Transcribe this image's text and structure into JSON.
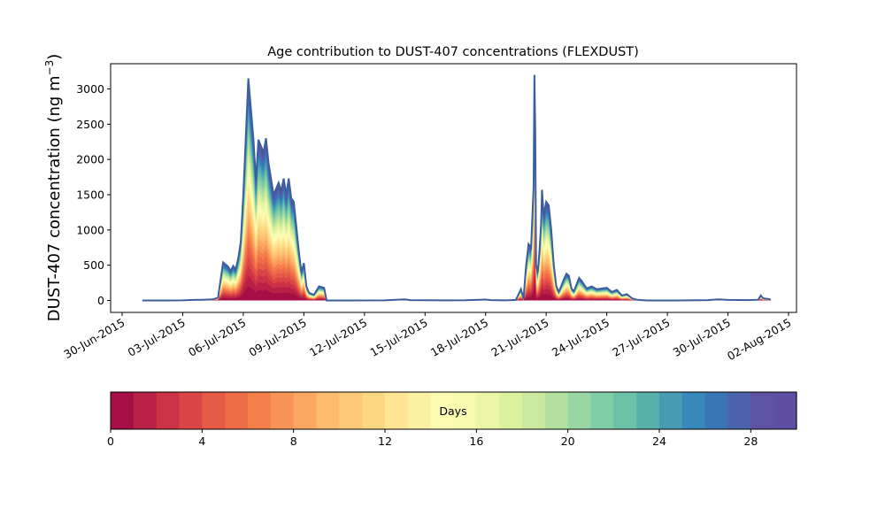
{
  "chart_data": {
    "type": "area",
    "title": "Age contribution to DUST-407 concentrations (FLEXDUST)",
    "ylabel": "DUST-407 concentration (ng m",
    "ylabel_sup": "−3",
    "ylabel_end": ")",
    "xlabel": "",
    "ylim": [
      -160,
      3320
    ],
    "xlim": [
      "2015-06-30T00:00",
      "2015-08-02T00:00"
    ],
    "y_ticks": [
      0,
      500,
      1000,
      1500,
      2000,
      2500,
      3000
    ],
    "x_ticks": [
      "2015-06-30",
      "2015-07-03",
      "2015-07-06",
      "2015-07-09",
      "2015-07-12",
      "2015-07-15",
      "2015-07-18",
      "2015-07-21",
      "2015-07-24",
      "2015-07-27",
      "2015-07-30",
      "2015-08-02"
    ],
    "x_tick_labels": [
      "30-Jun-2015",
      "03-Jul-2015",
      "06-Jul-2015",
      "09-Jul-2015",
      "12-Jul-2015",
      "15-Jul-2015",
      "18-Jul-2015",
      "21-Jul-2015",
      "24-Jul-2015",
      "27-Jul-2015",
      "30-Jul-2015",
      "02-Aug-2015"
    ],
    "grid": false,
    "series": [
      {
        "total": [
          [
            "2015-07-01T00:00",
            0
          ],
          [
            "2015-07-02T00:00",
            0
          ],
          [
            "2015-07-03T00:00",
            2
          ],
          [
            "2015-07-03T12:00",
            8
          ],
          [
            "2015-07-04T00:00",
            10
          ],
          [
            "2015-07-04T12:00",
            15
          ],
          [
            "2015-07-04T18:00",
            40
          ],
          [
            "2015-07-05T00:00",
            540
          ],
          [
            "2015-07-05T06:00",
            480
          ],
          [
            "2015-07-05T09:00",
            420
          ],
          [
            "2015-07-05T12:00",
            490
          ],
          [
            "2015-07-05T15:00",
            440
          ],
          [
            "2015-07-05T18:00",
            600
          ],
          [
            "2015-07-05T21:00",
            830
          ],
          [
            "2015-07-06T00:00",
            1500
          ],
          [
            "2015-07-06T06:00",
            3150
          ],
          [
            "2015-07-06T12:00",
            2300
          ],
          [
            "2015-07-06T15:00",
            1700
          ],
          [
            "2015-07-06T18:00",
            2280
          ],
          [
            "2015-07-07T00:00",
            2100
          ],
          [
            "2015-07-07T03:00",
            2300
          ],
          [
            "2015-07-07T06:00",
            1950
          ],
          [
            "2015-07-07T12:00",
            1500
          ],
          [
            "2015-07-07T18:00",
            1670
          ],
          [
            "2015-07-07T21:00",
            1550
          ],
          [
            "2015-07-08T00:00",
            1730
          ],
          [
            "2015-07-08T03:00",
            1500
          ],
          [
            "2015-07-08T06:00",
            1730
          ],
          [
            "2015-07-08T09:00",
            1450
          ],
          [
            "2015-07-08T12:00",
            1400
          ],
          [
            "2015-07-08T18:00",
            700
          ],
          [
            "2015-07-08T21:00",
            400
          ],
          [
            "2015-07-09T00:00",
            530
          ],
          [
            "2015-07-09T03:00",
            200
          ],
          [
            "2015-07-09T06:00",
            110
          ],
          [
            "2015-07-09T12:00",
            80
          ],
          [
            "2015-07-09T18:00",
            200
          ],
          [
            "2015-07-10T00:00",
            180
          ],
          [
            "2015-07-10T03:00",
            0
          ],
          [
            "2015-07-11T00:00",
            0
          ],
          [
            "2015-07-13T00:00",
            2
          ],
          [
            "2015-07-14T00:00",
            15
          ],
          [
            "2015-07-14T06:00",
            5
          ],
          [
            "2015-07-15T00:00",
            3
          ],
          [
            "2015-07-16T00:00",
            2
          ],
          [
            "2015-07-17T00:00",
            3
          ],
          [
            "2015-07-18T00:00",
            12
          ],
          [
            "2015-07-18T06:00",
            4
          ],
          [
            "2015-07-19T00:00",
            2
          ],
          [
            "2015-07-19T12:00",
            8
          ],
          [
            "2015-07-19T18:00",
            160
          ],
          [
            "2015-07-19T21:00",
            20
          ],
          [
            "2015-07-20T00:00",
            480
          ],
          [
            "2015-07-20T03:00",
            800
          ],
          [
            "2015-07-20T06:00",
            750
          ],
          [
            "2015-07-20T09:00",
            1600
          ],
          [
            "2015-07-20T10:00",
            3200
          ],
          [
            "2015-07-20T11:00",
            2400
          ],
          [
            "2015-07-20T12:00",
            500
          ],
          [
            "2015-07-20T14:00",
            400
          ],
          [
            "2015-07-20T16:00",
            700
          ],
          [
            "2015-07-20T18:00",
            1100
          ],
          [
            "2015-07-20T19:00",
            1570
          ],
          [
            "2015-07-20T21:00",
            1200
          ],
          [
            "2015-07-21T00:00",
            1400
          ],
          [
            "2015-07-21T03:00",
            1350
          ],
          [
            "2015-07-21T06:00",
            1000
          ],
          [
            "2015-07-21T09:00",
            500
          ],
          [
            "2015-07-21T12:00",
            200
          ],
          [
            "2015-07-21T15:00",
            120
          ],
          [
            "2015-07-21T21:00",
            300
          ],
          [
            "2015-07-22T00:00",
            380
          ],
          [
            "2015-07-22T03:00",
            350
          ],
          [
            "2015-07-22T06:00",
            170
          ],
          [
            "2015-07-22T09:00",
            130
          ],
          [
            "2015-07-22T15:00",
            320
          ],
          [
            "2015-07-22T18:00",
            280
          ],
          [
            "2015-07-23T00:00",
            170
          ],
          [
            "2015-07-23T06:00",
            200
          ],
          [
            "2015-07-23T12:00",
            160
          ],
          [
            "2015-07-23T18:00",
            170
          ],
          [
            "2015-07-24T00:00",
            180
          ],
          [
            "2015-07-24T06:00",
            120
          ],
          [
            "2015-07-24T12:00",
            150
          ],
          [
            "2015-07-24T18:00",
            70
          ],
          [
            "2015-07-25T00:00",
            90
          ],
          [
            "2015-07-25T06:00",
            30
          ],
          [
            "2015-07-25T12:00",
            10
          ],
          [
            "2015-07-26T00:00",
            0
          ],
          [
            "2015-07-27T00:00",
            0
          ],
          [
            "2015-07-28T00:00",
            2
          ],
          [
            "2015-07-29T00:00",
            5
          ],
          [
            "2015-07-29T12:00",
            15
          ],
          [
            "2015-07-30T00:00",
            8
          ],
          [
            "2015-07-31T00:00",
            5
          ],
          [
            "2015-07-31T12:00",
            10
          ],
          [
            "2015-07-31T15:00",
            70
          ],
          [
            "2015-07-31T18:00",
            30
          ],
          [
            "2015-08-01T00:00",
            20
          ],
          [
            "2015-08-01T03:00",
            10
          ]
        ]
      }
    ],
    "colorbar": {
      "label": "Days",
      "range": [
        0,
        30
      ],
      "n_colors": 30,
      "ticks": [
        "0",
        "4",
        "8",
        "12",
        "16",
        "20",
        "24",
        "28"
      ],
      "colors": [
        "#a50f45",
        "#b92046",
        "#cd3144",
        "#db4545",
        "#e65a48",
        "#ef6c49",
        "#f57f4a",
        "#f99458",
        "#fca862",
        "#fdbb6c",
        "#fec978",
        "#fed783",
        "#fee493",
        "#fef1a5",
        "#fefbb2",
        "#f6fbb1",
        "#ebf6a7",
        "#dbf19d",
        "#c9ea9e",
        "#b2e19f",
        "#98d6a4",
        "#81cda5",
        "#6cc1a6",
        "#58b0ab",
        "#479cb3",
        "#3888b9",
        "#3a75b5",
        "#4c64ad",
        "#5e53a2",
        "#5e4fa2"
      ]
    },
    "line_color": "#3d5e9e"
  }
}
